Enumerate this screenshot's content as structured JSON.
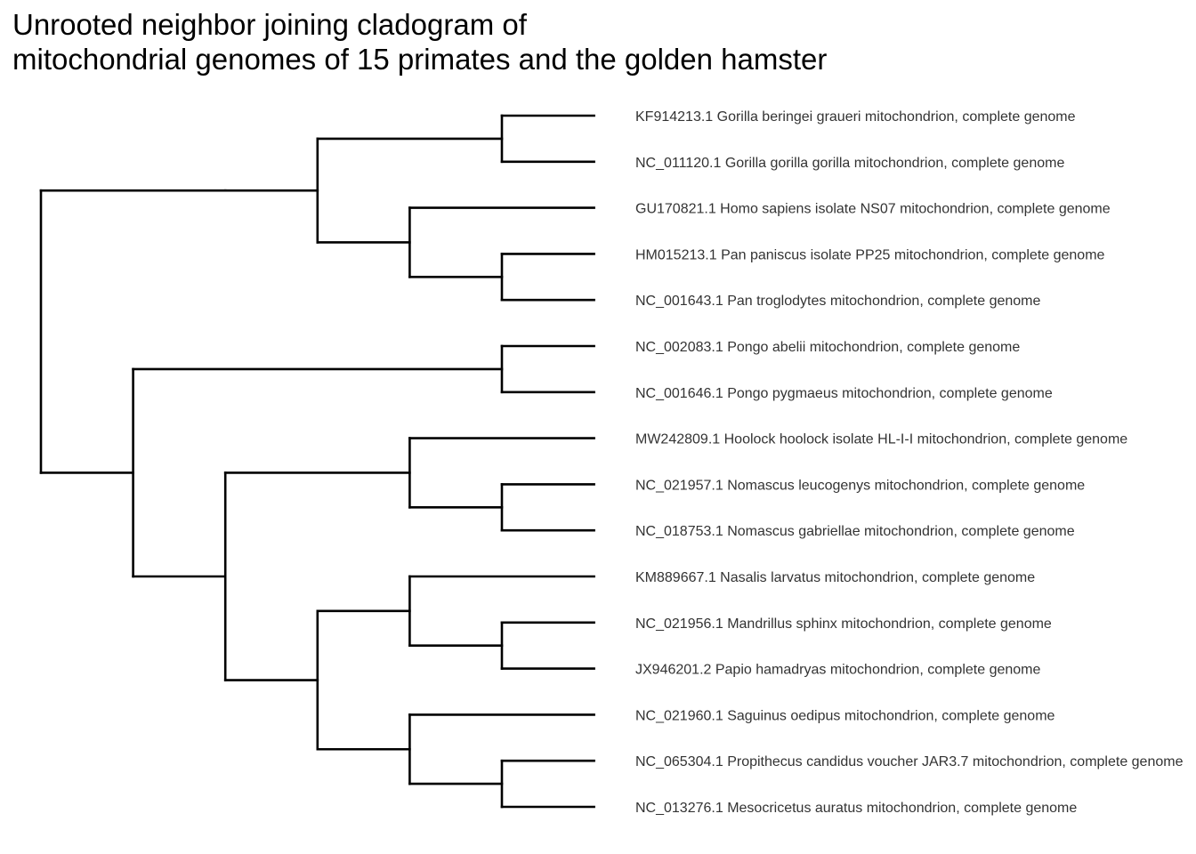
{
  "title": {
    "line1": "Unrooted neighbor joining cladogram of",
    "line2": "mitochondrial genomes of 15 primates and the golden hamster"
  },
  "colors": {
    "branch": "#000000",
    "label": "#333333",
    "background": "#ffffff"
  },
  "tree": {
    "tips": [
      "KF914213.1 Gorilla beringei graueri mitochondrion, complete genome",
      "NC_011120.1 Gorilla gorilla gorilla mitochondrion, complete genome",
      "GU170821.1 Homo sapiens isolate NS07 mitochondrion, complete genome",
      "HM015213.1 Pan paniscus isolate PP25 mitochondrion, complete genome",
      "NC_001643.1 Pan troglodytes mitochondrion, complete genome",
      "NC_002083.1 Pongo abelii mitochondrion, complete genome",
      "NC_001646.1 Pongo pygmaeus mitochondrion, complete genome",
      "MW242809.1 Hoolock hoolock isolate HL-I-I mitochondrion, complete genome",
      "NC_021957.1 Nomascus leucogenys mitochondrion, complete genome",
      "NC_018753.1 Nomascus gabriellae mitochondrion, complete genome",
      "KM889667.1 Nasalis larvatus mitochondrion, complete genome",
      "NC_021956.1 Mandrillus sphinx mitochondrion, complete genome",
      "JX946201.2 Papio hamadryas mitochondrion, complete genome",
      "NC_021960.1 Saguinus oedipus mitochondrion, complete genome",
      "NC_065304.1 Propithecus candidus voucher JAR3.7 mitochondrion, complete genome",
      "NC_013276.1 Mesocricetus auratus mitochondrion, complete genome"
    ],
    "topology": [
      [
        [
          [
            0,
            1
          ],
          [
            2,
            [
              3,
              4
            ]
          ]
        ]
      ],
      [
        [
          5,
          6
        ],
        [
          [
            7,
            [
              8,
              9
            ]
          ],
          [
            [
              10,
              [
                11,
                12
              ]
            ],
            [
              13,
              [
                14,
                15
              ]
            ]
          ]
        ]
      ]
    ]
  }
}
